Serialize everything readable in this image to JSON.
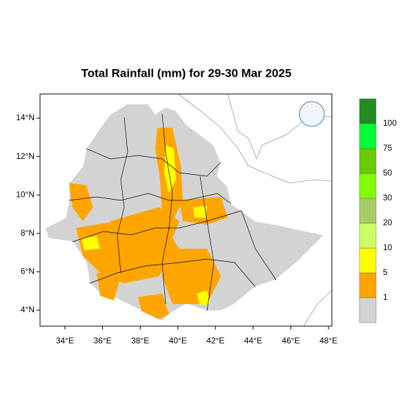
{
  "title": "Total Rainfall (mm) for 29-30 Mar 2025",
  "map": {
    "xlim": [
      32.68,
      48.18
    ],
    "ylim": [
      3.17,
      15.26
    ],
    "xticks": [
      {
        "value": 34,
        "label": "34°E"
      },
      {
        "value": 36,
        "label": "36°E"
      },
      {
        "value": 38,
        "label": "38°E"
      },
      {
        "value": 40,
        "label": "40°E"
      },
      {
        "value": 42,
        "label": "42°E"
      },
      {
        "value": 44,
        "label": "44°E"
      },
      {
        "value": 46,
        "label": "46°E"
      },
      {
        "value": 48,
        "label": "48°E"
      }
    ],
    "yticks": [
      {
        "value": 4,
        "label": "4°N"
      },
      {
        "value": 6,
        "label": "6°N"
      },
      {
        "value": 8,
        "label": "8°N"
      },
      {
        "value": 10,
        "label": "10°N"
      },
      {
        "value": 12,
        "label": "12°N"
      },
      {
        "value": 14,
        "label": "14°N"
      }
    ]
  },
  "legend": {
    "colors": [
      "#d3d3d3",
      "#ffa500",
      "#ffff00",
      "#ccff66",
      "#a6cc66",
      "#80ff00",
      "#66cc00",
      "#00ff33",
      "#228b22"
    ],
    "levels": [
      1,
      5,
      10,
      20,
      30,
      50,
      75,
      100
    ]
  }
}
